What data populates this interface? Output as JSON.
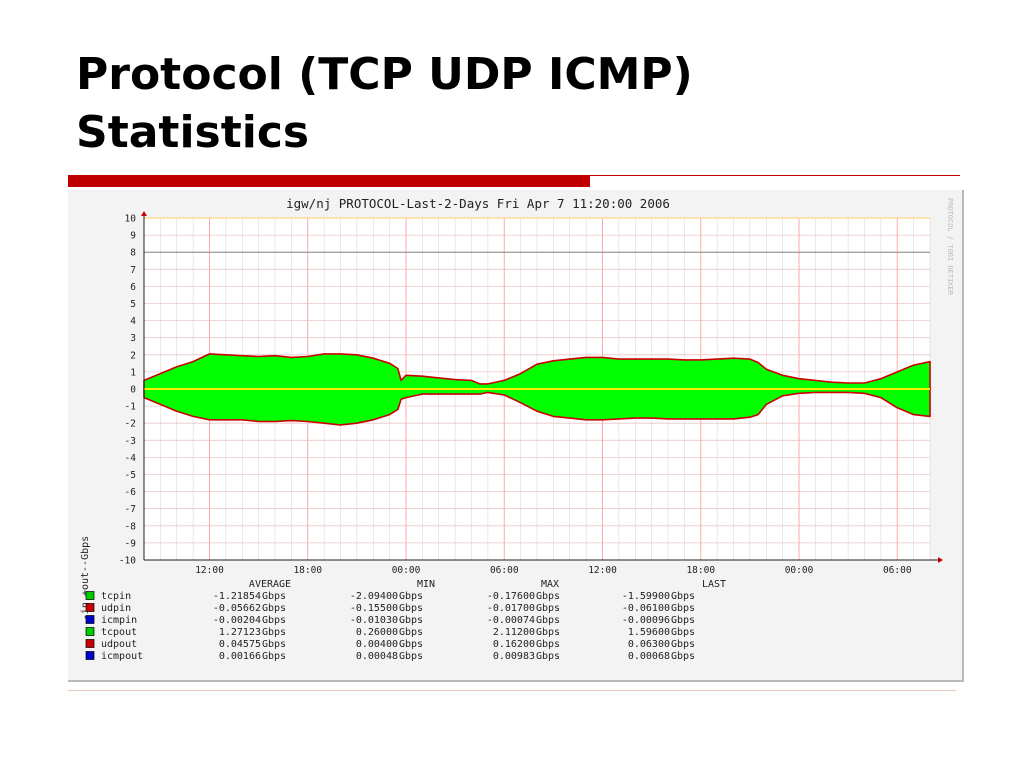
{
  "slide": {
    "title_line1": "Protocol (TCP UDP ICMP)",
    "title_line2": "Statistics"
  },
  "chart_data": {
    "type": "area",
    "title": "igw/nj PROTOCOL-Last-2-Days Fri Apr  7 11:20:00 2006",
    "ylabel": "-in,+out--Gbps",
    "side_label": "PROTOCOL / TOBI OETIKER",
    "ylim": [
      -10,
      10
    ],
    "y_ticks": [
      10,
      9,
      8,
      7,
      6,
      5,
      4,
      3,
      2,
      1,
      0,
      -1,
      -2,
      -3,
      -4,
      -5,
      -6,
      -7,
      -8,
      -9,
      -10
    ],
    "xlim_hours": [
      8,
      56
    ],
    "x_tick_labels": [
      "12:00",
      "18:00",
      "00:00",
      "06:00",
      "12:00",
      "18:00",
      "00:00",
      "06:00"
    ],
    "x_tick_hours": [
      12,
      18,
      24,
      30,
      36,
      42,
      48,
      54
    ],
    "threshold_line": 8,
    "grid": true,
    "series_colors": {
      "tcp": "#00ff00",
      "udp": "#cc0000",
      "icmp": "#0000cc",
      "zero_line": "#ffee00",
      "vgrid": "#ffaaaa",
      "hgrid": "#e8c8c8"
    },
    "envelope": {
      "x_hours": [
        8,
        9,
        10,
        11,
        12,
        13,
        14,
        15,
        16,
        17,
        18,
        19,
        20,
        21,
        22,
        23,
        23.5,
        23.7,
        24,
        25,
        26,
        27,
        28,
        28.5,
        29,
        30,
        31,
        32,
        33,
        34,
        35,
        36,
        37,
        38,
        39,
        40,
        41,
        42,
        43,
        44,
        45,
        45.5,
        46,
        47,
        48,
        49,
        50,
        51,
        52,
        53,
        54,
        55,
        56
      ],
      "tcpout": [
        0.5,
        0.9,
        1.3,
        1.6,
        2.05,
        2.0,
        1.95,
        1.9,
        1.95,
        1.85,
        1.9,
        2.05,
        2.05,
        2.0,
        1.8,
        1.5,
        1.2,
        0.5,
        0.8,
        0.75,
        0.65,
        0.55,
        0.5,
        0.3,
        0.3,
        0.5,
        0.9,
        1.45,
        1.65,
        1.75,
        1.85,
        1.85,
        1.75,
        1.75,
        1.75,
        1.75,
        1.7,
        1.7,
        1.75,
        1.8,
        1.75,
        1.55,
        1.15,
        0.8,
        0.6,
        0.5,
        0.4,
        0.35,
        0.35,
        0.6,
        1.0,
        1.4,
        1.6
      ],
      "tcpin": [
        -0.5,
        -0.9,
        -1.3,
        -1.6,
        -1.8,
        -1.8,
        -1.8,
        -1.9,
        -1.9,
        -1.85,
        -1.9,
        -2.0,
        -2.1,
        -2.0,
        -1.8,
        -1.5,
        -1.2,
        -0.6,
        -0.5,
        -0.3,
        -0.3,
        -0.3,
        -0.3,
        -0.3,
        -0.2,
        -0.35,
        -0.8,
        -1.3,
        -1.6,
        -1.7,
        -1.8,
        -1.8,
        -1.75,
        -1.7,
        -1.7,
        -1.75,
        -1.75,
        -1.75,
        -1.75,
        -1.75,
        -1.65,
        -1.5,
        -0.9,
        -0.4,
        -0.25,
        -0.2,
        -0.2,
        -0.2,
        -0.25,
        -0.5,
        -1.1,
        -1.5,
        -1.6
      ]
    },
    "legend_headers": [
      "AVERAGE",
      "MIN",
      "MAX",
      "LAST"
    ],
    "legend": [
      {
        "name": "tcpin",
        "color": "#00cc00",
        "average": "-1.21854",
        "min": "-2.09400",
        "max": "-0.17600",
        "last": "-1.59900",
        "unit": "Gbps"
      },
      {
        "name": "udpin",
        "color": "#cc0000",
        "average": "-0.05662",
        "min": "-0.15500",
        "max": "-0.01700",
        "last": "-0.06100",
        "unit": "Gbps"
      },
      {
        "name": "icmpin",
        "color": "#0000cc",
        "average": "-0.00204",
        "min": "-0.01030",
        "max": "-0.00074",
        "last": "-0.00096",
        "unit": "Gbps"
      },
      {
        "name": "tcpout",
        "color": "#00cc00",
        "average": "1.27123",
        "min": "0.26000",
        "max": "2.11200",
        "last": "1.59600",
        "unit": "Gbps"
      },
      {
        "name": "udpout",
        "color": "#cc0000",
        "average": "0.04575",
        "min": "0.00400",
        "max": "0.16200",
        "last": "0.06300",
        "unit": "Gbps"
      },
      {
        "name": "icmpout",
        "color": "#0000cc",
        "average": "0.00166",
        "min": "0.00048",
        "max": "0.00983",
        "last": "0.00068",
        "unit": "Gbps"
      }
    ]
  }
}
